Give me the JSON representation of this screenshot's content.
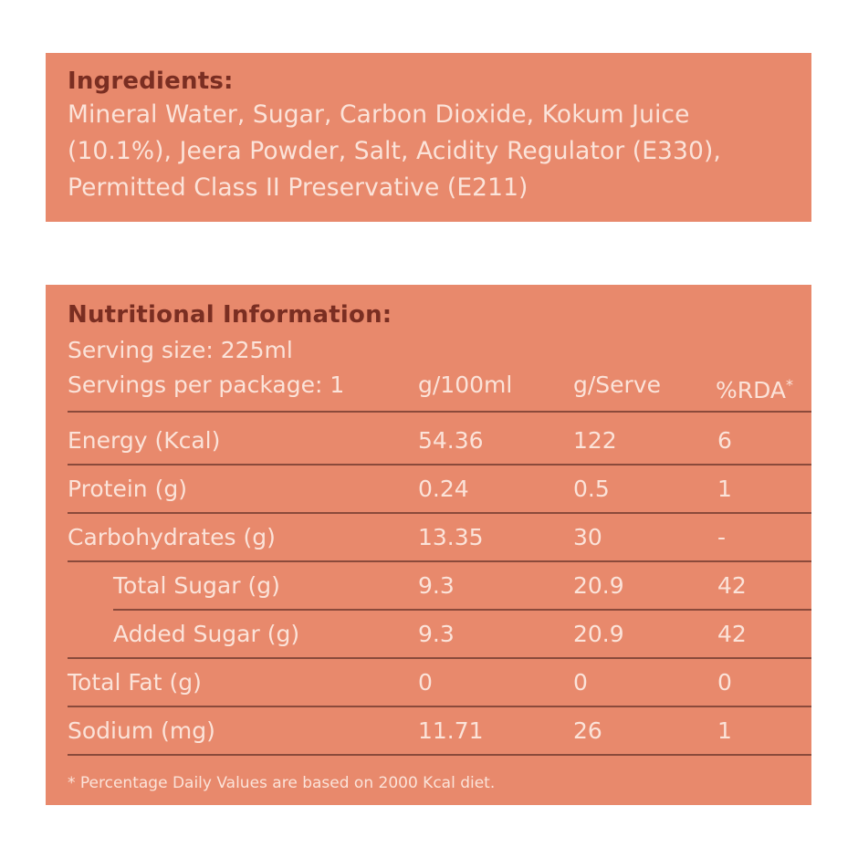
{
  "ingredients": {
    "heading": "Ingredients:",
    "lines": [
      "Mineral Water, Sugar, Carbon Dioxide, Kokum Juice",
      "(10.1%), Jeera Powder, Salt, Acidity Regulator (E330),",
      "Permitted Class II Preservative (E211)"
    ]
  },
  "nutrition": {
    "heading": "Nutritional Information:",
    "serving_size": "Serving size: 225ml",
    "servings_per_package": "Servings per package: 1",
    "columns": {
      "per100": "g/100ml",
      "serve": "g/Serve",
      "rda": "%RDA",
      "rda_marker": "*"
    },
    "rows": [
      {
        "label": "Energy (Kcal)",
        "per100": "54.36",
        "serve": "122",
        "rda": "6"
      },
      {
        "label": "Protein (g)",
        "per100": "0.24",
        "serve": "0.5",
        "rda": "1"
      },
      {
        "label": "Carbohydrates (g)",
        "per100": "13.35",
        "serve": "30",
        "rda": "-"
      },
      {
        "label": "Total Sugar (g)",
        "per100": "9.3",
        "serve": "20.9",
        "rda": "42"
      },
      {
        "label": "Added Sugar (g)",
        "per100": "9.3",
        "serve": "20.9",
        "rda": "42"
      },
      {
        "label": "Total Fat (g)",
        "per100": "0",
        "serve": "0",
        "rda": "0"
      },
      {
        "label": "Sodium (mg)",
        "per100": "11.71",
        "serve": "26",
        "rda": "1"
      }
    ],
    "footnote": "* Percentage Daily Values are based on 2000 Kcal diet."
  },
  "colors": {
    "panel": "#e8896c",
    "heading": "#7a2e22",
    "text": "#fbe3d9",
    "rule": "#8a4a3b"
  }
}
